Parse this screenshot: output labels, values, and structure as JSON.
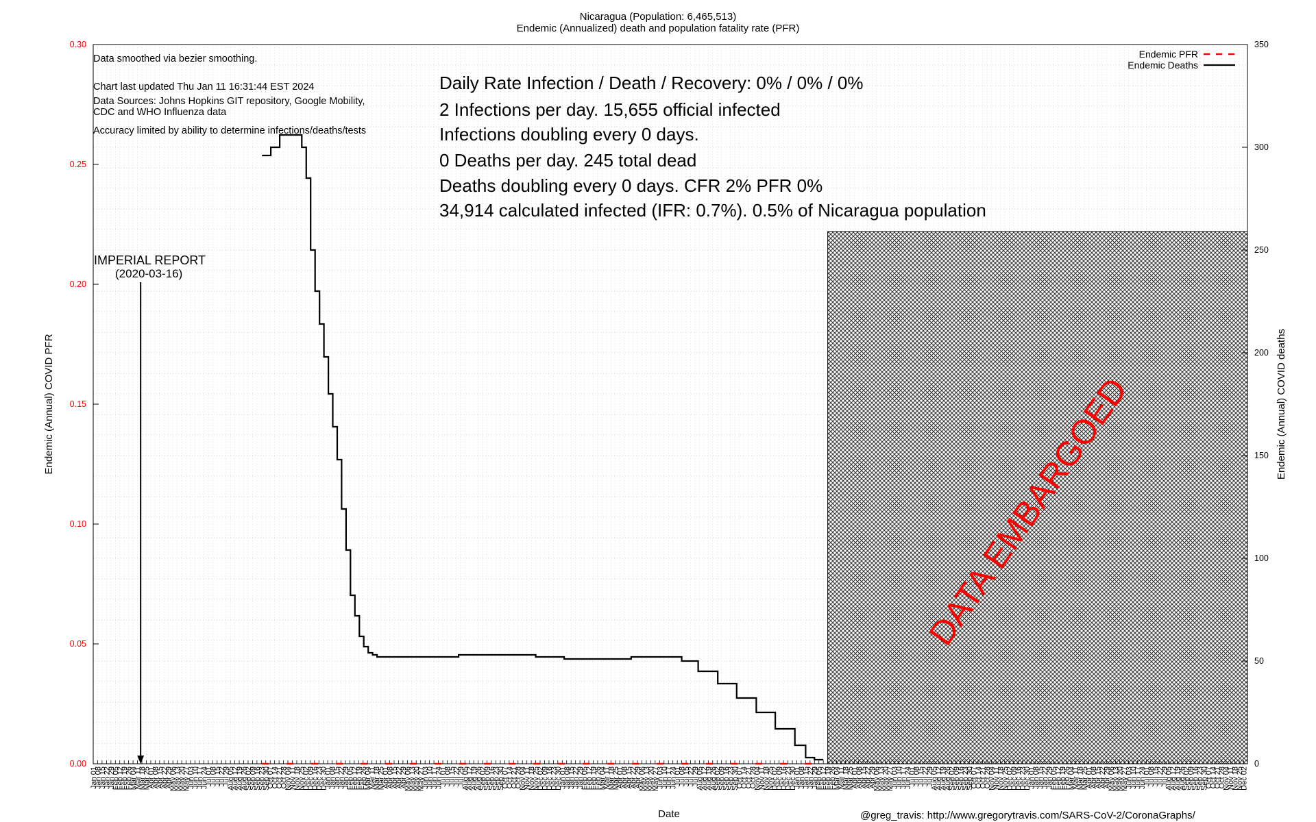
{
  "header": {
    "title_line1": "Nicaragua (Population: 6,465,513)",
    "title_line2": "Endemic (Annualized) death and population fatality rate (PFR)"
  },
  "notes": {
    "smoothing": "Data smoothed via bezier smoothing.",
    "updated": "Chart last updated Thu Jan 11 16:31:44 EST 2024",
    "sources_1": "Data Sources: Johns Hopkins GIT repository, Google Mobility,",
    "sources_2": "CDC and WHO Influenza data",
    "accuracy": "Accuracy limited by ability to determine infections/deaths/tests"
  },
  "stats": {
    "line1": "Daily Rate Infection / Death / Recovery: 0% / 0% / 0%",
    "line2": "2 Infections per day.  15,655 official infected",
    "line3": "Infections doubling every 0 days.",
    "line4": "0 Deaths per day.  245 total dead",
    "line5": "Deaths doubling every 0 days.  CFR 2%  PFR 0%",
    "line6": "34,914 calculated infected (IFR: 0.7%).  0.5% of Nicaragua population"
  },
  "annotation": {
    "label_1": "IMPERIAL REPORT",
    "label_2": "(2020-03-16)"
  },
  "embargo": {
    "label": "DATA EMBARGOED"
  },
  "footer": {
    "credit": "@greg_travis: http://www.gregorytravis.com/SARS-CoV-2/CoronaGraphs/"
  },
  "colors": {
    "pfr": "#ff0000",
    "deaths": "#000000",
    "left_ticks": "#ff0000",
    "grid": "#c8c8c8"
  },
  "chart_data": {
    "type": "line",
    "xlabel": "Date",
    "ylabel_left": "Endemic (Annual) COVID PFR",
    "ylabel_right": "Endemic (Annual) COVID deaths",
    "ylim_left": [
      0,
      0.3
    ],
    "ylim_right": [
      0,
      350
    ],
    "yticks_left": [
      "0.00",
      "0.05",
      "0.10",
      "0.15",
      "0.20",
      "0.25",
      "0.30"
    ],
    "yticks_right": [
      "0",
      "50",
      "100",
      "150",
      "200",
      "250",
      "300",
      "350"
    ],
    "xlim": [
      "2020-01-01",
      "2024-12-31"
    ],
    "grid": true,
    "legend_position": "top-right",
    "x_tick_labels": [
      "Jan 01",
      "Jan 08",
      "Jan 15",
      "Jan 22",
      "Jan 29",
      "Feb 05",
      "Feb 12",
      "Feb 19",
      "Feb 26",
      "Mar 04",
      "Mar 11",
      "Mar 18",
      "Mar 25",
      "Apr 01",
      "Apr 08",
      "Apr 15",
      "Apr 22",
      "Apr 29",
      "May 06",
      "May 13",
      "May 20",
      "May 27",
      "Jun 03",
      "Jun 10",
      "Jun 17",
      "Jun 24",
      "Jul 01",
      "Jul 08",
      "Jul 15",
      "Jul 22",
      "Jul 29",
      "Aug 05",
      "Aug 12",
      "Aug 19",
      "Aug 26",
      "Sep 02",
      "Sep 09",
      "Sep 16",
      "Sep 23",
      "Sep 30",
      "Oct 07",
      "Oct 14",
      "Oct 21",
      "Oct 28",
      "Nov 04",
      "Nov 11",
      "Nov 18",
      "Nov 25",
      "Dec 02",
      "Dec 09",
      "Dec 16",
      "Dec 23",
      "Dec 30"
    ],
    "series": [
      {
        "name": "Endemic PFR",
        "color": "#ff0000",
        "values": [
          0.0
        ]
      },
      {
        "name": "Endemic Deaths",
        "color": "#000000",
        "x": [
          "2020-09-24",
          "2020-10-08",
          "2020-10-22",
          "2020-11-05",
          "2020-11-19",
          "2020-11-26",
          "2020-12-03",
          "2020-12-10",
          "2020-12-17",
          "2020-12-24",
          "2020-12-31",
          "2021-01-07",
          "2021-01-14",
          "2021-01-21",
          "2021-01-28",
          "2021-02-04",
          "2021-02-11",
          "2021-02-18",
          "2021-02-25",
          "2021-03-04",
          "2021-03-11",
          "2021-03-18",
          "2021-03-25",
          "2021-04-15",
          "2021-06-01",
          "2021-08-01",
          "2021-10-01",
          "2021-12-01",
          "2022-01-15",
          "2022-03-01",
          "2022-05-01",
          "2022-07-01",
          "2022-07-20",
          "2022-08-15",
          "2022-09-15",
          "2022-10-15",
          "2022-11-15",
          "2022-12-15",
          "2023-01-15",
          "2023-02-01",
          "2023-02-15",
          "2023-03-01"
        ],
        "values": [
          296,
          300,
          306,
          306,
          306,
          300,
          285,
          250,
          230,
          214,
          198,
          180,
          164,
          148,
          124,
          104,
          82,
          72,
          62,
          57,
          54,
          53,
          52,
          52,
          52,
          53,
          53,
          52,
          51,
          51,
          52,
          52,
          50,
          45,
          39,
          32,
          25,
          17,
          9,
          3,
          2,
          2
        ]
      }
    ]
  }
}
